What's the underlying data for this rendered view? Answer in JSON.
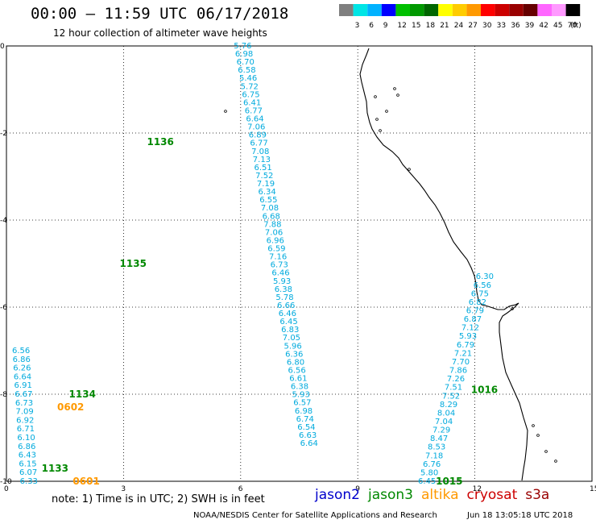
{
  "header": {
    "title": "00:00 – 11:59 UTC 06/17/2018",
    "subtitle": "12 hour collection of altimeter wave heights"
  },
  "legend": {
    "unit": "(ft)",
    "bins": [
      {
        "label": "",
        "color": "#7f7f7f"
      },
      {
        "label": "3",
        "color": "#00e5e5"
      },
      {
        "label": "6",
        "color": "#00b2ff"
      },
      {
        "label": "9",
        "color": "#0000ff"
      },
      {
        "label": "12",
        "color": "#00c000"
      },
      {
        "label": "15",
        "color": "#009900"
      },
      {
        "label": "18",
        "color": "#006600"
      },
      {
        "label": "21",
        "color": "#ffff00"
      },
      {
        "label": "24",
        "color": "#ffcc00"
      },
      {
        "label": "27",
        "color": "#ff9900"
      },
      {
        "label": "30",
        "color": "#ff0000"
      },
      {
        "label": "33",
        "color": "#cc0000"
      },
      {
        "label": "36",
        "color": "#990000"
      },
      {
        "label": "39",
        "color": "#660000"
      },
      {
        "label": "42",
        "color": "#ff66ff"
      },
      {
        "label": "45",
        "color": "#ff99ff"
      },
      {
        "label": "70",
        "color": "#000000"
      }
    ]
  },
  "axes": {
    "x_ticks": [
      "0",
      "3",
      "6",
      "9",
      "12",
      "15"
    ],
    "y_ticks": [
      "0",
      "-2",
      "-4",
      "-6",
      "-8",
      "-10"
    ]
  },
  "tracks": [
    {
      "name": "track-1",
      "color": "#00aadd",
      "start": [
        0.0,
        6.03
      ],
      "end": [
        -9.13,
        7.73
      ],
      "values": [
        "5.76",
        "6.98",
        "6.70",
        "6.58",
        "5.46",
        "5.72",
        "6.75",
        "6.41",
        "6.77",
        "6.64",
        "7.06",
        "6.89",
        "6.77",
        "7.08",
        "7.13",
        "6.51",
        "7.52",
        "7.19",
        "6.34",
        "6.55",
        "7.08",
        "6.68",
        "7.88",
        "7.06",
        "6.96",
        "6.59",
        "7.16",
        "6.73",
        "6.46",
        "5.93",
        "6.38",
        "5.78",
        "6.66",
        "6.46",
        "6.45",
        "6.83",
        "7.05",
        "5.96",
        "6.36",
        "6.80",
        "6.56",
        "6.61",
        "6.38",
        "5.93",
        "6.57",
        "6.98",
        "6.74",
        "6.54",
        "6.63",
        "6.64"
      ]
    },
    {
      "name": "track-2",
      "color": "#00aadd",
      "start": [
        -7.0,
        0.35
      ],
      "end": [
        -10.0,
        0.55
      ],
      "values": [
        "6.56",
        "6.86",
        "6.26",
        "6.64",
        "6.91",
        "6.67",
        "6.73",
        "7.09",
        "6.92",
        "6.71",
        "6.10",
        "6.86",
        "6.43",
        "6.15",
        "6.07",
        "6.33"
      ]
    },
    {
      "name": "track-3",
      "color": "#00aadd",
      "start": [
        -5.3,
        12.23
      ],
      "end": [
        -10.0,
        10.75
      ],
      "values": [
        "6.30",
        "6.56",
        "6.75",
        "6.82",
        "6.79",
        "6.87",
        "7.12",
        "5.93",
        "6.79",
        "7.21",
        "7.70",
        "7.86",
        "7.26",
        "7.51",
        "7.52",
        "8.29",
        "8.04",
        "7.04",
        "7.29",
        "8.47",
        "8.53",
        "7.18",
        "6.76",
        "5.80",
        "6.45"
      ]
    }
  ],
  "time_labels": [
    {
      "text": "1136",
      "lat": -2.2,
      "lon": 3.6,
      "color": "#008800"
    },
    {
      "text": "1135",
      "lat": -5.0,
      "lon": 2.9,
      "color": "#008800"
    },
    {
      "text": "1134",
      "lat": -8.0,
      "lon": 1.6,
      "color": "#008800"
    },
    {
      "text": "0602",
      "lat": -8.3,
      "lon": 1.3,
      "color": "#ff9900"
    },
    {
      "text": "1133",
      "lat": -9.7,
      "lon": 0.9,
      "color": "#008800"
    },
    {
      "text": "0601",
      "lat": -10.0,
      "lon": 1.7,
      "color": "#ff9900"
    },
    {
      "text": "1016",
      "lat": -7.9,
      "lon": 11.9,
      "color": "#008800"
    },
    {
      "text": "1015",
      "lat": -10.0,
      "lon": 11.0,
      "color": "#008800"
    }
  ],
  "footer": {
    "note": "note: 1) Time is in UTC; 2) SWH is in feet",
    "satellites": [
      {
        "name": "jason2",
        "color": "#0000cc"
      },
      {
        "name": "jason3",
        "color": "#008800"
      },
      {
        "name": "altika",
        "color": "#ff9900"
      },
      {
        "name": "cryosat",
        "color": "#cc0000"
      },
      {
        "name": "s3a",
        "color": "#990000"
      }
    ],
    "credit": "NOAA/NESDIS Center for Satellite Applications and Research",
    "timestamp": "Jun 18 13:05:18 UTC 2018"
  }
}
